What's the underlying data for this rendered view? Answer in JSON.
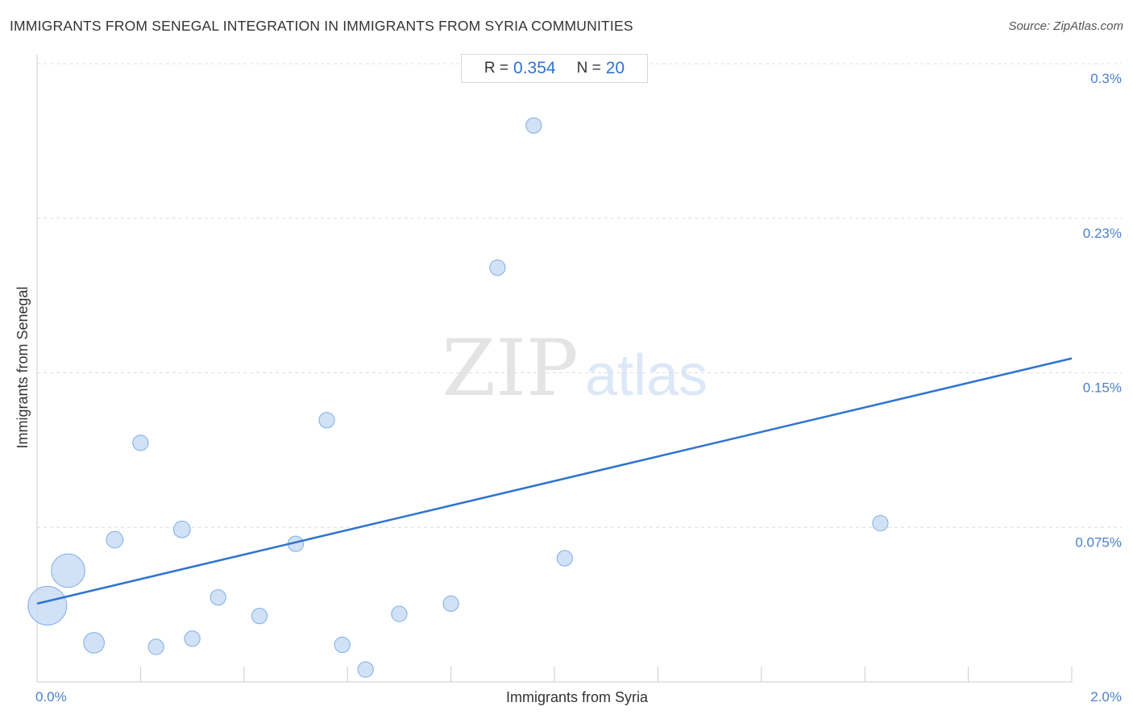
{
  "title": "IMMIGRANTS FROM SENEGAL INTEGRATION IN IMMIGRANTS FROM SYRIA COMMUNITIES",
  "source": "Source: ZipAtlas.com",
  "stats": {
    "r_label": "R =",
    "r_value": "0.354",
    "n_label": "N =",
    "n_value": "20"
  },
  "watermark": {
    "zip": "ZIP",
    "atlas": "atlas"
  },
  "colors": {
    "point_fill": "#c9dcf5",
    "point_stroke": "#7faee6",
    "line": "#2f73d0",
    "grid": "#dddddd"
  },
  "chart_data": {
    "type": "scatter",
    "xlabel": "Immigrants from Syria",
    "ylabel": "Immigrants from Senegal",
    "xlim": [
      0,
      2.0
    ],
    "ylim": [
      0,
      0.3
    ],
    "x_tick_labels": [
      {
        "value": 0,
        "label": "0.0%"
      },
      {
        "value": 2.0,
        "label": "2.0%"
      }
    ],
    "y_tick_labels": [
      {
        "value": 0.3,
        "label": "0.3%"
      },
      {
        "value": 0.225,
        "label": "0.23%"
      },
      {
        "value": 0.15,
        "label": "0.15%"
      },
      {
        "value": 0.075,
        "label": "0.075%"
      }
    ],
    "grid": true,
    "points": [
      {
        "x": 0.02,
        "y": 0.037,
        "size": 3
      },
      {
        "x": 0.06,
        "y": 0.054,
        "size": 2.6
      },
      {
        "x": 0.11,
        "y": 0.019,
        "size": 1.6
      },
      {
        "x": 0.15,
        "y": 0.069,
        "size": 1.3
      },
      {
        "x": 0.2,
        "y": 0.116,
        "size": 1.2
      },
      {
        "x": 0.23,
        "y": 0.017,
        "size": 1.2
      },
      {
        "x": 0.28,
        "y": 0.074,
        "size": 1.3
      },
      {
        "x": 0.3,
        "y": 0.021,
        "size": 1.2
      },
      {
        "x": 0.35,
        "y": 0.041,
        "size": 1.2
      },
      {
        "x": 0.43,
        "y": 0.032,
        "size": 1.2
      },
      {
        "x": 0.5,
        "y": 0.067,
        "size": 1.2
      },
      {
        "x": 0.56,
        "y": 0.127,
        "size": 1.2
      },
      {
        "x": 0.59,
        "y": 0.018,
        "size": 1.2
      },
      {
        "x": 0.635,
        "y": 0.006,
        "size": 1.2
      },
      {
        "x": 0.7,
        "y": 0.033,
        "size": 1.2
      },
      {
        "x": 0.8,
        "y": 0.038,
        "size": 1.2
      },
      {
        "x": 0.89,
        "y": 0.201,
        "size": 1.2
      },
      {
        "x": 0.96,
        "y": 0.27,
        "size": 1.2
      },
      {
        "x": 1.02,
        "y": 0.06,
        "size": 1.2
      },
      {
        "x": 1.63,
        "y": 0.077,
        "size": 1.2
      }
    ],
    "trendline": {
      "x": [
        0,
        2.0
      ],
      "y": [
        0.038,
        0.157
      ]
    }
  }
}
